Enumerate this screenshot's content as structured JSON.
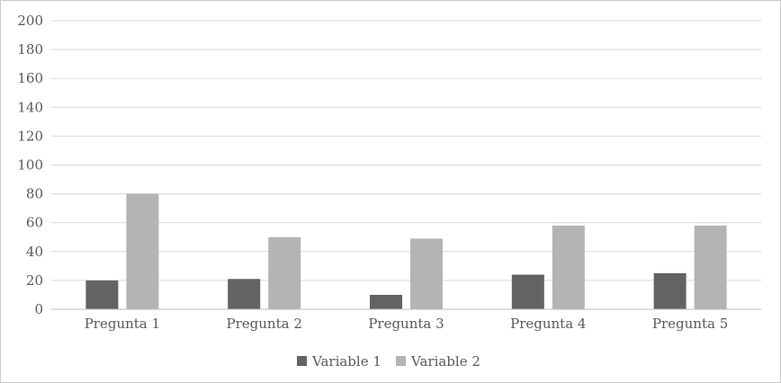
{
  "chart_data": {
    "type": "bar",
    "categories": [
      "Pregunta 1",
      "Pregunta 2",
      "Pregunta 3",
      "Pregunta 4",
      "Pregunta 5"
    ],
    "series": [
      {
        "name": "Variable 1",
        "color": "#636363",
        "values": [
          20,
          21,
          10,
          24,
          25
        ]
      },
      {
        "name": "Variable 2",
        "color": "#b4b4b4",
        "values": [
          80,
          50,
          49,
          58,
          58
        ]
      }
    ],
    "yticks": [
      0,
      20,
      40,
      60,
      80,
      100,
      120,
      140,
      160,
      180,
      200
    ],
    "ylim": [
      0,
      200
    ],
    "grid": true,
    "legend_position": "bottom"
  }
}
